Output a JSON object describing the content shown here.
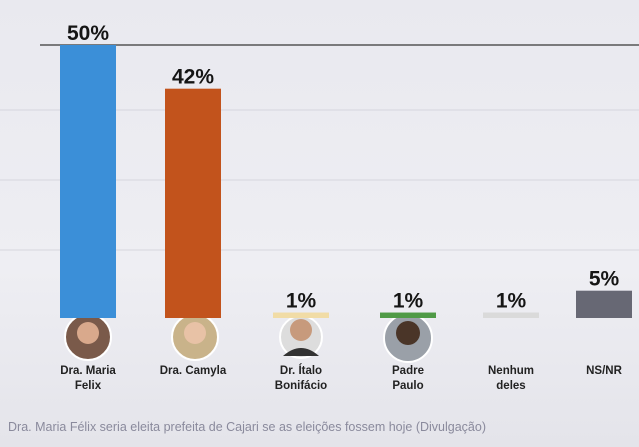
{
  "chart_data": {
    "type": "bar",
    "categories": [
      "Dra. Maria Felix",
      "Dra. Camyla",
      "Dr. Ítalo Bonifácio",
      "Padre Paulo",
      "Nenhum deles",
      "NS/NR"
    ],
    "values": [
      50,
      42,
      1,
      1,
      1,
      5
    ],
    "value_labels": [
      "50%",
      "42%",
      "1%",
      "1%",
      "1%",
      "5%"
    ],
    "colors": [
      "#3b8fd8",
      "#c2531c",
      "#f1dca6",
      "#4f9a46",
      "#dadada",
      "#676874"
    ],
    "caption": "Dra. Maria Félix seria eleita prefeita de Cajari se as eleições fossem hoje (Divulgação)"
  }
}
